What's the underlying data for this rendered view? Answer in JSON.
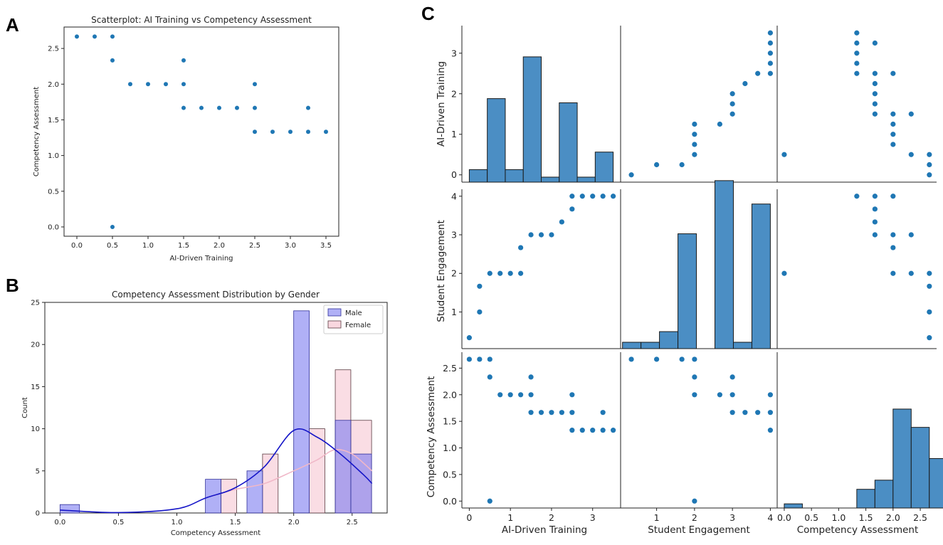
{
  "panels": {
    "a": "A",
    "b": "B",
    "c": "C"
  },
  "colors": {
    "point": "#1f77b4",
    "hist_fill": "#4b8ec4",
    "male_fill": "#7b7bf0",
    "male_edge": "#2f2f9a",
    "male_kde": "#1515c8",
    "female_fill": "#f9d7df",
    "female_edge": "#5a3a40",
    "female_kde": "#f0b8c8"
  },
  "chart_data": [
    {
      "id": "A",
      "type": "scatter",
      "title": "Scatterplot: AI Training vs Competency Assessment",
      "xlabel": "AI-Driven Training",
      "ylabel": "Competency Assessment",
      "xlim": [
        -0.18,
        3.68
      ],
      "ylim": [
        -0.13,
        2.8
      ],
      "xticks": [
        0,
        0.5,
        1,
        1.5,
        2,
        2.5,
        3,
        3.5
      ],
      "xtick_labels": [
        "0.0",
        "0.5",
        "1.0",
        "1.5",
        "2.0",
        "2.5",
        "3.0",
        "3.5"
      ],
      "yticks": [
        0,
        0.5,
        1,
        1.5,
        2,
        2.5
      ],
      "ytick_labels": [
        "0.0",
        "0.5",
        "1.0",
        "1.5",
        "2.0",
        "2.5"
      ],
      "points": [
        [
          0,
          2.667
        ],
        [
          0.25,
          2.667
        ],
        [
          0.5,
          2.667
        ],
        [
          0.5,
          2.333
        ],
        [
          0.5,
          0
        ],
        [
          0.75,
          2
        ],
        [
          1,
          2
        ],
        [
          1.25,
          2
        ],
        [
          1.5,
          2
        ],
        [
          1.5,
          2.333
        ],
        [
          1.5,
          1.667
        ],
        [
          1.75,
          1.667
        ],
        [
          2,
          1.667
        ],
        [
          2.25,
          1.667
        ],
        [
          2.5,
          2
        ],
        [
          2.5,
          1.667
        ],
        [
          2.5,
          1.333
        ],
        [
          2.75,
          1.333
        ],
        [
          3,
          1.333
        ],
        [
          3.25,
          1.333
        ],
        [
          3.25,
          1.667
        ],
        [
          3.5,
          1.333
        ]
      ]
    },
    {
      "id": "B",
      "type": "bar",
      "title": "Competency Assessment Distribution by Gender",
      "xlabel": "Competency Assessment",
      "ylabel": "Count",
      "xlim": [
        -0.13,
        2.8
      ],
      "ylim": [
        0,
        25
      ],
      "xticks": [
        0,
        0.5,
        1,
        1.5,
        2,
        2.5
      ],
      "xtick_labels": [
        "0.0",
        "0.5",
        "1.0",
        "1.5",
        "2.0",
        "2.5"
      ],
      "yticks": [
        0,
        5,
        10,
        15,
        20,
        25
      ],
      "ytick_labels": [
        "0",
        "5",
        "10",
        "15",
        "20",
        "25"
      ],
      "legend": [
        "Male",
        "Female"
      ],
      "series": [
        {
          "name": "Male",
          "bins": [
            [
              0,
              0.1667,
              1
            ],
            [
              1.2444,
              1.3778,
              4
            ],
            [
              1.6,
              1.7333,
              5
            ],
            [
              2,
              2.1333,
              24
            ],
            [
              2.3556,
              2.4889,
              11
            ],
            [
              2.4889,
              2.6667,
              7
            ]
          ],
          "kde": [
            [
              0,
              0.35
            ],
            [
              0.5,
              0.05
            ],
            [
              1,
              0.5
            ],
            [
              1.25,
              1.8
            ],
            [
              1.5,
              3.0
            ],
            [
              1.75,
              5.5
            ],
            [
              2.0,
              9.8
            ],
            [
              2.2,
              9.0
            ],
            [
              2.4,
              7.0
            ],
            [
              2.6,
              4.5
            ],
            [
              2.67,
              3.5
            ]
          ]
        },
        {
          "name": "Female",
          "bins": [
            [
              1.3778,
              1.5111,
              4
            ],
            [
              1.7333,
              1.8667,
              7
            ],
            [
              2.1333,
              2.2667,
              10
            ],
            [
              2.3556,
              2.4889,
              17
            ],
            [
              2.4889,
              2.6667,
              11
            ]
          ],
          "kde": [
            [
              1.3,
              2.0
            ],
            [
              1.5,
              2.8
            ],
            [
              1.75,
              3.5
            ],
            [
              2.0,
              5.0
            ],
            [
              2.2,
              6.3
            ],
            [
              2.35,
              7.5
            ],
            [
              2.5,
              7.0
            ],
            [
              2.67,
              5.0
            ]
          ]
        }
      ]
    },
    {
      "id": "C",
      "type": "pairplot",
      "variables": [
        "AI-Driven Training",
        "Student Engagement",
        "Competency Assessment"
      ],
      "ranges": [
        [
          -0.18,
          3.68
        ],
        [
          0.05,
          4.18
        ],
        [
          -0.13,
          2.8
        ]
      ],
      "ticks": [
        {
          "values": [
            0,
            1,
            2,
            3
          ],
          "labels": [
            "0",
            "1",
            "2",
            "3"
          ]
        },
        {
          "values": [
            1,
            2,
            3,
            4
          ],
          "labels": [
            "1",
            "2",
            "3",
            "4"
          ]
        },
        {
          "values": [
            0,
            0.5,
            1,
            1.5,
            2,
            2.5
          ],
          "labels": [
            "0.0",
            "0.5",
            "1.0",
            "1.5",
            "2.0",
            "2.5"
          ]
        }
      ],
      "yticks": [
        {
          "values": [
            0,
            1,
            2,
            3
          ],
          "labels": [
            "0",
            "1",
            "2",
            "3"
          ]
        },
        {
          "values": [
            1,
            2,
            3,
            4
          ],
          "labels": [
            "1",
            "2",
            "3",
            "4"
          ]
        },
        {
          "values": [
            0,
            0.5,
            1,
            1.5,
            2,
            2.5
          ],
          "labels": [
            "0.0",
            "0.5",
            "1.0",
            "1.5",
            "2.0",
            "2.5"
          ]
        }
      ],
      "ylims": [
        [
          -0.18,
          3.68
        ],
        [
          0.05,
          4.18
        ],
        [
          -0.13,
          2.8
        ]
      ],
      "hist_ylim": [
        0,
        3.68
      ],
      "hist_bins": [
        {
          "x0": -0.0,
          "w": 0.4375,
          "h": [
            0.3,
            2.0,
            0.3,
            3.0,
            0.12,
            1.9,
            0.12,
            0.72
          ]
        },
        {
          "x0": 0.1,
          "w": 0.4875,
          "h": [
            0.15,
            0.15,
            0.4,
            2.7,
            0,
            3.95,
            0.15,
            3.4
          ]
        },
        {
          "x0": 0.0,
          "w": 0.3333,
          "h": [
            0.1,
            0,
            0,
            0,
            0.45,
            0.67,
            2.38,
            1.94,
            1.19
          ]
        }
      ],
      "pairs": {
        "0_1": [
          [
            0,
            0.333
          ],
          [
            0.25,
            1.667
          ],
          [
            0.25,
            1
          ],
          [
            0.5,
            2
          ],
          [
            0.75,
            2
          ],
          [
            1,
            2
          ],
          [
            1.25,
            2
          ],
          [
            1.25,
            2.667
          ],
          [
            1.5,
            3
          ],
          [
            1.75,
            3
          ],
          [
            2,
            3
          ],
          [
            2.25,
            3.333
          ],
          [
            2.5,
            3.667
          ],
          [
            2.5,
            4
          ],
          [
            2.75,
            4
          ],
          [
            3,
            4
          ],
          [
            3.25,
            4
          ],
          [
            3.5,
            4
          ]
        ],
        "0_2": [
          [
            0,
            2.667
          ],
          [
            0.25,
            2.667
          ],
          [
            0.5,
            2.667
          ],
          [
            0.5,
            2.333
          ],
          [
            0.5,
            0
          ],
          [
            0.75,
            2
          ],
          [
            1,
            2
          ],
          [
            1.25,
            2
          ],
          [
            1.5,
            2
          ],
          [
            1.5,
            2.333
          ],
          [
            1.5,
            1.667
          ],
          [
            1.75,
            1.667
          ],
          [
            2,
            1.667
          ],
          [
            2.25,
            1.667
          ],
          [
            2.5,
            2
          ],
          [
            2.5,
            1.667
          ],
          [
            2.5,
            1.333
          ],
          [
            2.75,
            1.333
          ],
          [
            3,
            1.333
          ],
          [
            3.25,
            1.333
          ],
          [
            3.25,
            1.667
          ],
          [
            3.5,
            1.333
          ]
        ],
        "1_2": [
          [
            0.333,
            2.667
          ],
          [
            1,
            2.667
          ],
          [
            1.667,
            2.667
          ],
          [
            2,
            2.667
          ],
          [
            2,
            2.333
          ],
          [
            2,
            2
          ],
          [
            2,
            0
          ],
          [
            2.667,
            2
          ],
          [
            3,
            2
          ],
          [
            3,
            2.333
          ],
          [
            3,
            1.667
          ],
          [
            3.333,
            1.667
          ],
          [
            3.667,
            1.667
          ],
          [
            4,
            2
          ],
          [
            4,
            1.667
          ],
          [
            4,
            1.333
          ]
        ]
      }
    }
  ]
}
